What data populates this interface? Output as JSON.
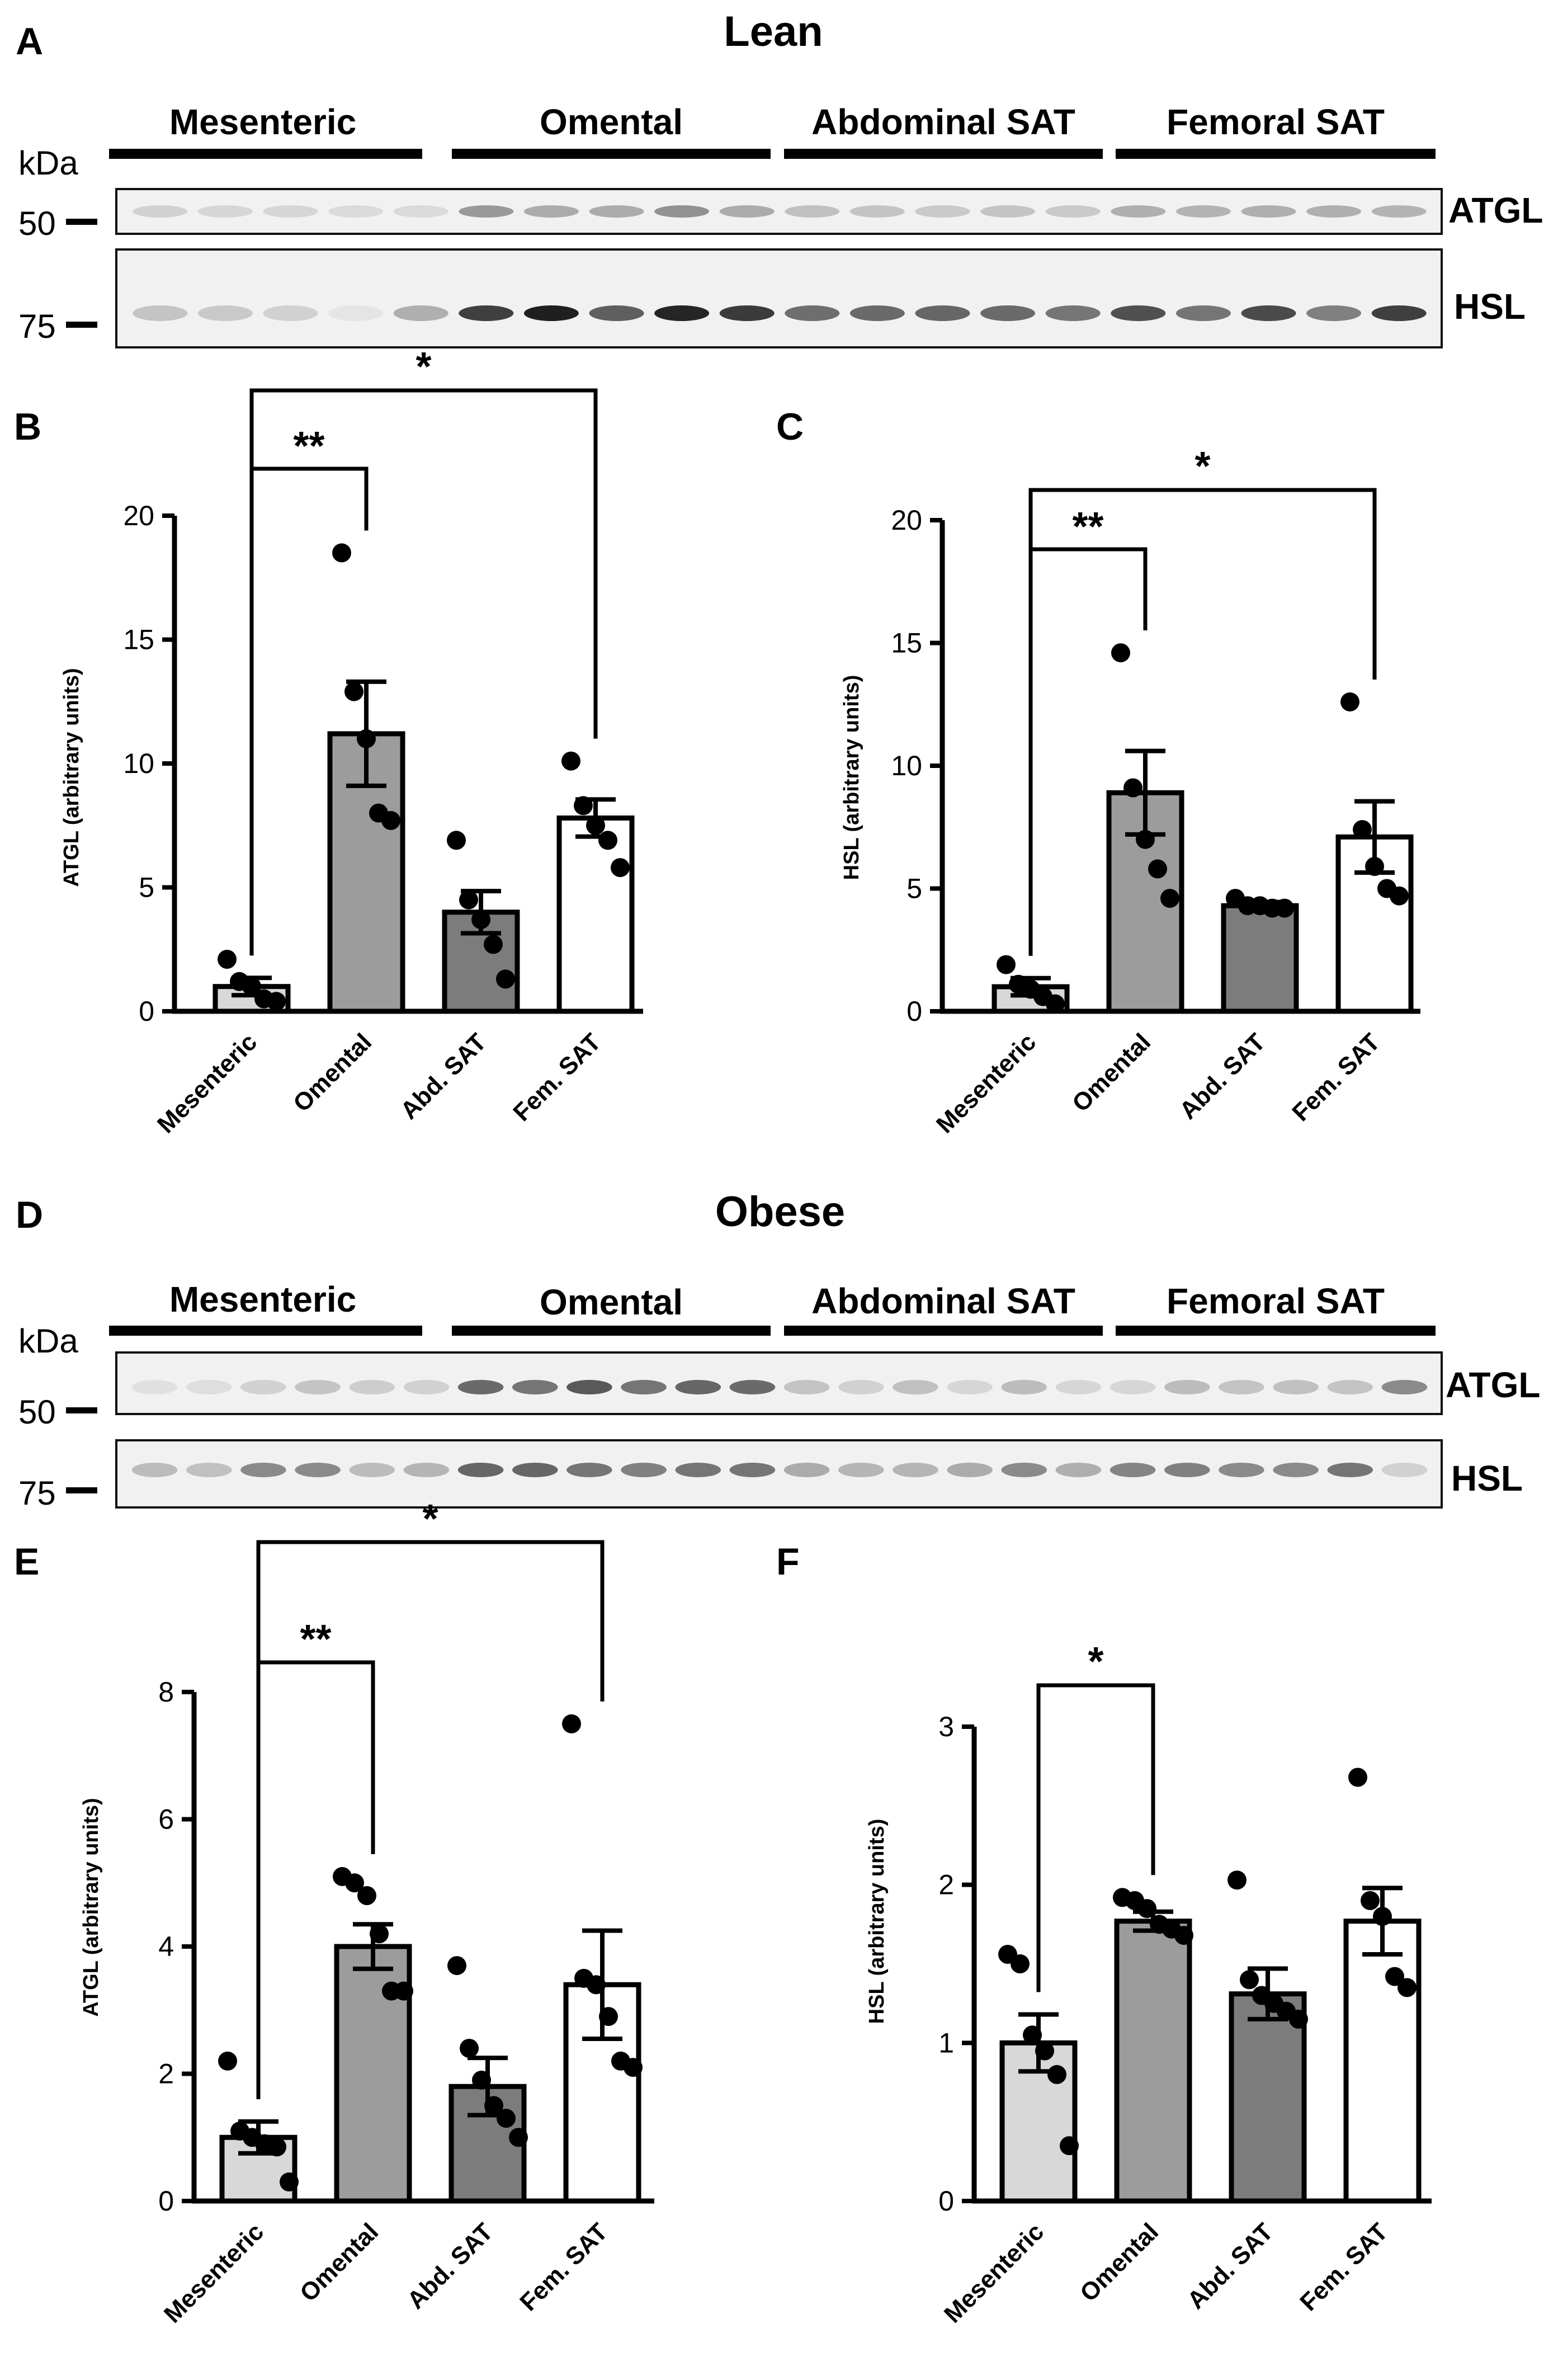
{
  "panel_labels": {
    "A": "A",
    "B": "B",
    "C": "C",
    "D": "D",
    "E": "E",
    "F": "F"
  },
  "blots": {
    "lean": {
      "title": "Lean",
      "kda_label": "kDa",
      "groups": [
        "Mesenteric",
        "Omental",
        "Abdominal SAT",
        "Femoral SAT"
      ],
      "rows": [
        {
          "protein": "ATGL",
          "marker": "50",
          "intensities": [
            0.12,
            0.1,
            0.1,
            0.08,
            0.08,
            0.38,
            0.3,
            0.3,
            0.42,
            0.3,
            0.2,
            0.18,
            0.16,
            0.18,
            0.16,
            0.28,
            0.26,
            0.28,
            0.28,
            0.26
          ]
        },
        {
          "protein": "HSL",
          "marker": "75",
          "intensities": [
            0.18,
            0.16,
            0.12,
            0.03,
            0.28,
            0.8,
            0.95,
            0.65,
            0.92,
            0.82,
            0.58,
            0.6,
            0.62,
            0.6,
            0.55,
            0.72,
            0.55,
            0.75,
            0.5,
            0.8
          ]
        }
      ]
    },
    "obese": {
      "title": "Obese",
      "kda_label": "kDa",
      "groups": [
        "Mesenteric",
        "Omental",
        "Abdominal SAT",
        "Femoral SAT"
      ],
      "rows": [
        {
          "protein": "ATGL",
          "marker": "50",
          "intensities": [
            0.05,
            0.06,
            0.12,
            0.18,
            0.14,
            0.12,
            0.6,
            0.55,
            0.68,
            0.55,
            0.62,
            0.6,
            0.18,
            0.12,
            0.2,
            0.1,
            0.22,
            0.1,
            0.1,
            0.22,
            0.18,
            0.2,
            0.18,
            0.45
          ]
        },
        {
          "protein": "HSL",
          "marker": "75",
          "intensities": [
            0.22,
            0.2,
            0.45,
            0.45,
            0.22,
            0.25,
            0.62,
            0.62,
            0.55,
            0.5,
            0.55,
            0.55,
            0.3,
            0.25,
            0.25,
            0.3,
            0.45,
            0.28,
            0.48,
            0.5,
            0.45,
            0.45,
            0.55,
            0.12
          ]
        }
      ]
    }
  },
  "chart_data": [
    {
      "panel": "B",
      "type": "bar",
      "ylabel": "ATGL (arbitrary units)",
      "categories": [
        "Mesenteric",
        "Omental",
        "Abd. SAT",
        "Fem. SAT"
      ],
      "values": [
        1.0,
        11.2,
        4.0,
        7.8
      ],
      "sem": [
        0.35,
        2.1,
        0.85,
        0.75
      ],
      "points": [
        [
          2.1,
          1.2,
          1.0,
          0.5,
          0.4
        ],
        [
          18.5,
          12.9,
          11.0,
          8.0,
          7.7
        ],
        [
          6.9,
          4.5,
          3.7,
          2.7,
          1.3
        ],
        [
          10.1,
          8.3,
          7.5,
          6.9,
          5.8
        ]
      ],
      "ylim": [
        0,
        20
      ],
      "yticks": [
        0,
        5,
        10,
        15,
        20
      ],
      "fill_colors": [
        "#d8d8d8",
        "#9c9c9c",
        "#7c7c7c",
        "#ffffff"
      ],
      "significance": [
        {
          "from": 0,
          "to": 1,
          "label": "**"
        },
        {
          "from": 0,
          "to": 3,
          "label": "*"
        }
      ]
    },
    {
      "panel": "C",
      "type": "bar",
      "ylabel": "HSL (arbitrary units)",
      "categories": [
        "Mesenteric",
        "Omental",
        "Abd. SAT",
        "Fem. SAT"
      ],
      "values": [
        1.0,
        8.9,
        4.3,
        7.1
      ],
      "sem": [
        0.35,
        1.7,
        0.15,
        1.45
      ],
      "points": [
        [
          1.9,
          1.1,
          0.9,
          0.6,
          0.3
        ],
        [
          14.6,
          9.1,
          7.0,
          5.8,
          4.6
        ],
        [
          4.6,
          4.3,
          4.3,
          4.2,
          4.2
        ],
        [
          12.6,
          7.4,
          5.9,
          5.0,
          4.7
        ]
      ],
      "ylim": [
        0,
        20
      ],
      "yticks": [
        0,
        5,
        10,
        15,
        20
      ],
      "fill_colors": [
        "#d8d8d8",
        "#9c9c9c",
        "#7c7c7c",
        "#ffffff"
      ],
      "significance": [
        {
          "from": 0,
          "to": 1,
          "label": "**"
        },
        {
          "from": 0,
          "to": 3,
          "label": "*"
        }
      ]
    },
    {
      "panel": "E",
      "type": "bar",
      "ylabel": "ATGL (arbitrary units)",
      "categories": [
        "Mesenteric",
        "Omental",
        "Abd. SAT",
        "Fem. SAT"
      ],
      "values": [
        1.0,
        4.0,
        1.8,
        3.4
      ],
      "sem": [
        0.25,
        0.35,
        0.45,
        0.85
      ],
      "points": [
        [
          2.2,
          1.1,
          1.0,
          0.9,
          0.85,
          0.3
        ],
        [
          5.1,
          5.0,
          4.8,
          4.2,
          3.3,
          3.3
        ],
        [
          3.7,
          2.4,
          1.9,
          1.5,
          1.3,
          1.0
        ],
        [
          7.5,
          3.5,
          3.4,
          2.9,
          2.2,
          2.1
        ]
      ],
      "ylim": [
        0,
        8
      ],
      "yticks": [
        0,
        2,
        4,
        6,
        8
      ],
      "fill_colors": [
        "#d8d8d8",
        "#9c9c9c",
        "#7c7c7c",
        "#ffffff"
      ],
      "significance": [
        {
          "from": 0,
          "to": 1,
          "label": "**"
        },
        {
          "from": 0,
          "to": 3,
          "label": "*"
        }
      ]
    },
    {
      "panel": "F",
      "type": "bar",
      "ylabel": "HSL (arbitrary units)",
      "categories": [
        "Mesenteric",
        "Omental",
        "Abd. SAT",
        "Fem. SAT"
      ],
      "values": [
        1.0,
        1.77,
        1.31,
        1.77
      ],
      "sem": [
        0.18,
        0.06,
        0.16,
        0.21
      ],
      "points": [
        [
          1.56,
          1.5,
          1.05,
          0.95,
          0.8,
          0.35
        ],
        [
          1.92,
          1.9,
          1.85,
          1.75,
          1.72,
          1.68
        ],
        [
          2.03,
          1.4,
          1.3,
          1.25,
          1.2,
          1.15
        ],
        [
          2.68,
          1.9,
          1.8,
          1.42,
          1.35
        ]
      ],
      "ylim": [
        0,
        3
      ],
      "yticks": [
        0,
        1,
        2,
        3
      ],
      "fill_colors": [
        "#d8d8d8",
        "#9c9c9c",
        "#7c7c7c",
        "#ffffff"
      ],
      "significance": [
        {
          "from": 0,
          "to": 1,
          "label": "*"
        }
      ]
    }
  ]
}
